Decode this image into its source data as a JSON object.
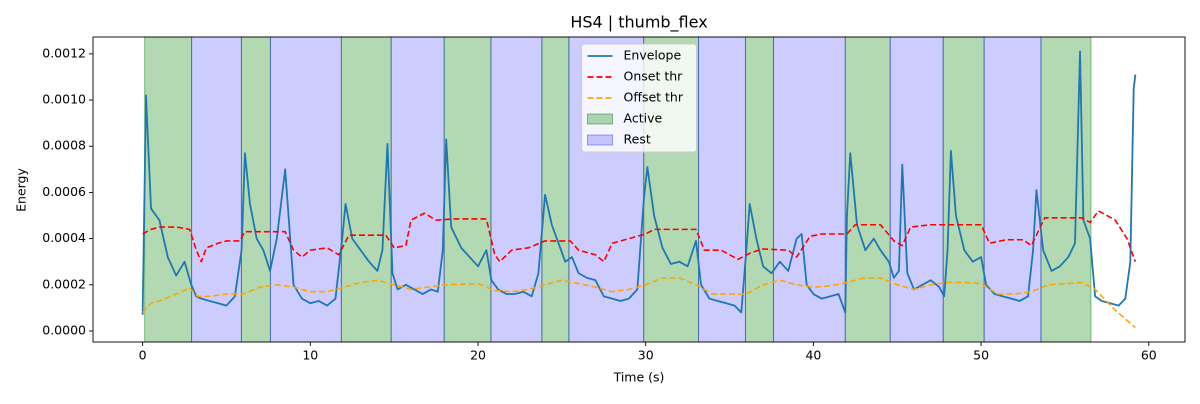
{
  "chart_data": {
    "type": "line",
    "title": "HS4 | thumb_flex",
    "xlabel": "Time (s)",
    "ylabel": "Energy",
    "xlim": [
      -2.96,
      62.16
    ],
    "ylim": [
      -4.77e-05,
      0.001273
    ],
    "xticks": [
      0,
      10,
      20,
      30,
      40,
      50,
      60
    ],
    "yticks": [
      {
        "value": 0,
        "label": "0.0000"
      },
      {
        "value": 0.0002,
        "label": "0.0002"
      },
      {
        "value": 0.0004,
        "label": "0.0004"
      },
      {
        "value": 0.0006,
        "label": "0.0006"
      },
      {
        "value": 0.0008,
        "label": "0.0008"
      },
      {
        "value": 0.001,
        "label": "0.0010"
      },
      {
        "value": 0.0012,
        "label": "0.0012"
      }
    ],
    "grid": false,
    "legend": "upper center",
    "regions": [
      {
        "name": "Active",
        "color": "#008000",
        "alpha": 0.3,
        "spans": [
          [
            0.12,
            2.92
          ],
          [
            5.89,
            7.62
          ],
          [
            11.85,
            14.82
          ],
          [
            17.98,
            20.77
          ],
          [
            23.81,
            25.42
          ],
          [
            29.88,
            33.15
          ],
          [
            35.95,
            37.62
          ],
          [
            41.9,
            44.58
          ],
          [
            47.74,
            50.18
          ],
          [
            53.57,
            56.55
          ]
        ]
      },
      {
        "name": "Rest",
        "color": "#0000ff",
        "alpha": 0.2,
        "spans": [
          [
            2.92,
            5.89
          ],
          [
            7.62,
            11.85
          ],
          [
            14.82,
            17.98
          ],
          [
            20.77,
            23.81
          ],
          [
            25.42,
            29.88
          ],
          [
            33.15,
            35.95
          ],
          [
            37.62,
            41.9
          ],
          [
            44.58,
            47.74
          ],
          [
            50.18,
            53.57
          ]
        ]
      }
    ],
    "series": [
      {
        "name": "Envelope",
        "color": "#1f77b4",
        "linestyle": "solid",
        "x": [
          0,
          0.2,
          0.5,
          1.0,
          1.5,
          2.0,
          2.5,
          2.9,
          3.2,
          3.5,
          4.0,
          4.5,
          5.0,
          5.5,
          5.9,
          6.1,
          6.4,
          6.8,
          7.2,
          7.6,
          8.0,
          8.5,
          9.0,
          9.5,
          10.0,
          10.5,
          11.0,
          11.5,
          11.9,
          12.1,
          12.5,
          13.0,
          13.5,
          14.0,
          14.3,
          14.6,
          14.9,
          15.2,
          15.7,
          16.2,
          16.7,
          17.2,
          17.6,
          17.9,
          18.1,
          18.4,
          19.0,
          19.5,
          20.0,
          20.5,
          20.8,
          21.2,
          21.7,
          22.2,
          22.7,
          23.2,
          23.6,
          24.0,
          24.4,
          24.8,
          25.2,
          25.6,
          26.0,
          26.5,
          27.0,
          27.5,
          28.0,
          28.5,
          29.0,
          29.5,
          29.9,
          30.1,
          30.5,
          31.0,
          31.5,
          32.0,
          32.5,
          33.0,
          33.3,
          33.8,
          34.3,
          34.8,
          35.3,
          35.7,
          36.0,
          36.2,
          36.6,
          37.0,
          37.5,
          38.0,
          38.5,
          39.0,
          39.3,
          39.6,
          40.0,
          40.5,
          41.0,
          41.5,
          41.9,
          42.0,
          42.2,
          42.6,
          43.1,
          43.6,
          44.0,
          44.5,
          44.8,
          45.1,
          45.3,
          45.6,
          46.0,
          46.5,
          47.0,
          47.5,
          47.8,
          48.0,
          48.2,
          48.5,
          49.0,
          49.5,
          50.0,
          50.3,
          50.8,
          51.3,
          51.8,
          52.3,
          52.8,
          53.1,
          53.3,
          53.7,
          54.2,
          54.7,
          55.2,
          55.6,
          55.9,
          56.1,
          56.5,
          56.8,
          57.2,
          57.7,
          58.2,
          58.6,
          58.9,
          59.1,
          59.2
        ],
        "values": [
          7e-05,
          0.00102,
          0.00053,
          0.00048,
          0.00032,
          0.00024,
          0.0003,
          0.0002,
          0.00015,
          0.00014,
          0.00013,
          0.00012,
          0.00011,
          0.00015,
          0.00035,
          0.00077,
          0.00055,
          0.0004,
          0.00035,
          0.00026,
          0.0004,
          0.0007,
          0.0002,
          0.00014,
          0.00012,
          0.00013,
          0.00011,
          0.00014,
          0.0004,
          0.00055,
          0.0004,
          0.00035,
          0.0003,
          0.00026,
          0.00035,
          0.00081,
          0.00025,
          0.00018,
          0.0002,
          0.00018,
          0.00016,
          0.00018,
          0.00017,
          0.00035,
          0.00083,
          0.00045,
          0.00036,
          0.00032,
          0.00028,
          0.00035,
          0.00022,
          0.00018,
          0.00016,
          0.00016,
          0.00017,
          0.00015,
          0.00025,
          0.00059,
          0.00046,
          0.00038,
          0.0003,
          0.00032,
          0.00025,
          0.00023,
          0.00022,
          0.00015,
          0.00014,
          0.00013,
          0.00014,
          0.00018,
          0.00058,
          0.00071,
          0.0005,
          0.00036,
          0.00029,
          0.0003,
          0.00028,
          0.00039,
          0.0002,
          0.00014,
          0.00013,
          0.00012,
          0.00011,
          8e-05,
          0.00035,
          0.00055,
          0.0004,
          0.00028,
          0.00025,
          0.0003,
          0.00026,
          0.0004,
          0.00042,
          0.0002,
          0.00016,
          0.00014,
          0.00015,
          0.00016,
          8e-05,
          0.0005,
          0.00077,
          0.00046,
          0.00035,
          0.0004,
          0.00035,
          0.0003,
          0.00023,
          0.00026,
          0.00072,
          0.00025,
          0.00018,
          0.0002,
          0.00022,
          0.00019,
          0.00015,
          0.00035,
          0.00078,
          0.0005,
          0.00035,
          0.0003,
          0.00032,
          0.0002,
          0.00016,
          0.00015,
          0.00014,
          0.00013,
          0.00015,
          0.00035,
          0.00061,
          0.00035,
          0.00026,
          0.00028,
          0.00032,
          0.00038,
          0.00121,
          0.00048,
          0.0004,
          0.00015,
          0.00013,
          0.00012,
          0.00011,
          0.00014,
          0.0003,
          0.00105,
          0.00111
        ]
      },
      {
        "name": "Onset thr",
        "color": "#ff0000",
        "linestyle": "dashed",
        "x": [
          0,
          0.5,
          1,
          2,
          2.8,
          3.2,
          3.5,
          3.8,
          4.5,
          5,
          5.8,
          6.1,
          7,
          8.5,
          9,
          9.5,
          10,
          11,
          11.7,
          12.3,
          14.5,
          15,
          15.7,
          16,
          16.8,
          17.5,
          18.5,
          20.5,
          21,
          21.3,
          22,
          23,
          24,
          25.5,
          26,
          27,
          27.5,
          28,
          29,
          30,
          30.5,
          33,
          33.5,
          34.5,
          35.5,
          36.3,
          37,
          38.5,
          39,
          39.8,
          40.5,
          42,
          42.5,
          44,
          44.8,
          45.3,
          45.8,
          47,
          50,
          50.5,
          51.5,
          52.5,
          53,
          53.8,
          56,
          56.5,
          57,
          58,
          58.7,
          59.2
        ],
        "values": [
          0.00042,
          0.00044,
          0.00045,
          0.00045,
          0.00044,
          0.00035,
          0.0003,
          0.00036,
          0.00038,
          0.00039,
          0.00039,
          0.00043,
          0.00043,
          0.00043,
          0.00035,
          0.00032,
          0.00035,
          0.00036,
          0.00033,
          0.000415,
          0.000415,
          0.00036,
          0.00037,
          0.00048,
          0.00051,
          0.00048,
          0.000485,
          0.000485,
          0.00033,
          0.0003,
          0.00035,
          0.00036,
          0.00039,
          0.00039,
          0.00035,
          0.00033,
          0.0003,
          0.00038,
          0.0004,
          0.00042,
          0.00044,
          0.00044,
          0.00035,
          0.00035,
          0.00031,
          0.00034,
          0.000355,
          0.00035,
          0.00032,
          0.00041,
          0.00042,
          0.00042,
          0.00046,
          0.00046,
          0.00039,
          0.00037,
          0.00045,
          0.00046,
          0.00046,
          0.00038,
          0.000395,
          0.000395,
          0.00037,
          0.00049,
          0.00049,
          0.00047,
          0.00052,
          0.00048,
          0.0004,
          0.0003
        ]
      },
      {
        "name": "Offset thr",
        "color": "#ffa500",
        "linestyle": "dashed",
        "x": [
          0,
          0.5,
          1,
          2,
          2.8,
          3.3,
          4,
          5,
          6,
          7,
          8,
          9,
          10,
          11,
          12,
          13,
          14,
          15,
          16,
          17,
          18,
          20,
          21,
          22,
          23,
          24,
          25,
          26,
          27,
          28,
          29,
          30,
          31,
          32,
          33,
          34,
          35,
          36,
          37,
          38,
          39,
          40,
          41,
          42,
          43,
          44,
          45,
          46,
          47,
          48,
          49,
          50,
          51,
          52,
          53,
          54,
          55,
          56,
          56.8,
          58,
          59.2
        ],
        "values": [
          8e-05,
          0.00012,
          0.00013,
          0.00016,
          0.000185,
          0.00015,
          0.00015,
          0.00016,
          0.00016,
          0.00019,
          0.0002,
          0.00019,
          0.00017,
          0.00017,
          0.00019,
          0.00021,
          0.00022,
          0.0002,
          0.00018,
          0.00019,
          0.0002,
          0.000205,
          0.000175,
          0.00017,
          0.00018,
          0.0002,
          0.00022,
          0.000205,
          0.00019,
          0.00017,
          0.00018,
          0.0002,
          0.00023,
          0.00023,
          0.0002,
          0.00016,
          0.00016,
          0.00016,
          0.0002,
          0.00022,
          0.0002,
          0.00019,
          0.000195,
          0.00021,
          0.00023,
          0.00023,
          0.0002,
          0.00018,
          0.0002,
          0.00021,
          0.00021,
          0.000205,
          0.00016,
          0.00016,
          0.00017,
          0.0002,
          0.000205,
          0.00021,
          0.00018,
          9e-05,
          1.5e-05
        ]
      }
    ]
  }
}
